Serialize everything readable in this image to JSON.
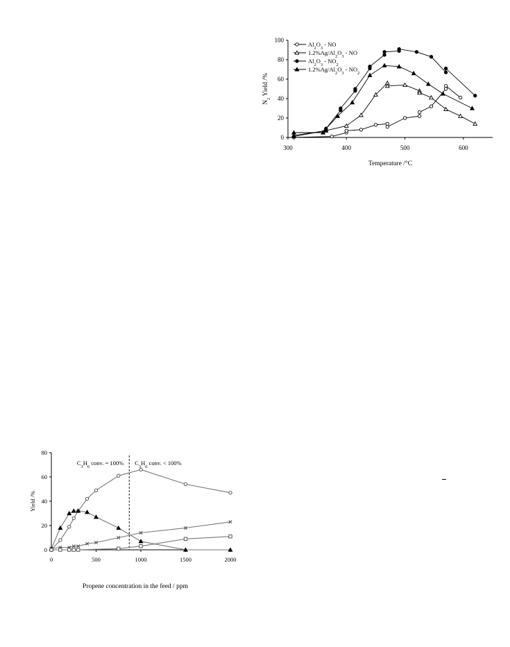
{
  "chart_data": [
    {
      "type": "line",
      "xlabel": "Temperature /°C",
      "ylabel_main": "N",
      "ylabel_sub": "2",
      "ylabel_rest": " Yield /%",
      "xlim": [
        300,
        650
      ],
      "ylim": [
        0,
        100
      ],
      "xticks": [
        300,
        400,
        500,
        600
      ],
      "yticks": [
        0,
        20,
        40,
        60,
        80,
        100
      ],
      "legend_position": "top-left",
      "series": [
        {
          "name": "Al2O3 - NO",
          "marker": "circle-open",
          "points": [
            [
              310,
              0
            ],
            [
              375,
              1
            ],
            [
              400,
              5
            ],
            [
              400,
              7
            ],
            [
              425,
              8
            ],
            [
              450,
              13
            ],
            [
              470,
              14
            ],
            [
              470,
              11
            ],
            [
              500,
              20
            ],
            [
              525,
              22
            ],
            [
              525,
              26
            ],
            [
              545,
              32
            ],
            [
              570,
              50
            ],
            [
              570,
              53
            ],
            [
              595,
              41
            ]
          ]
        },
        {
          "name": "1.2%Ag/Al2O3 - NO",
          "marker": "triangle-open",
          "points": [
            [
              310,
              2
            ],
            [
              365,
              7
            ],
            [
              400,
              12
            ],
            [
              425,
              23
            ],
            [
              450,
              44
            ],
            [
              470,
              56
            ],
            [
              470,
              53
            ],
            [
              500,
              54
            ],
            [
              525,
              48
            ],
            [
              525,
              46
            ],
            [
              545,
              41
            ],
            [
              570,
              29
            ],
            [
              595,
              22
            ],
            [
              620,
              14
            ]
          ]
        },
        {
          "name": "Al2O3 - NO2",
          "marker": "circle-filled",
          "points": [
            [
              310,
              1
            ],
            [
              365,
              7
            ],
            [
              365,
              9
            ],
            [
              390,
              28
            ],
            [
              390,
              30
            ],
            [
              415,
              48
            ],
            [
              415,
              50
            ],
            [
              440,
              71
            ],
            [
              440,
              73
            ],
            [
              465,
              85
            ],
            [
              465,
              88
            ],
            [
              490,
              89
            ],
            [
              490,
              91
            ],
            [
              520,
              88
            ],
            [
              545,
              83
            ],
            [
              570,
              67
            ],
            [
              570,
              71
            ],
            [
              620,
              43
            ]
          ]
        },
        {
          "name": "1.2%Ag/Al2O3 - NO2",
          "marker": "triangle-filled",
          "points": [
            [
              310,
              5
            ],
            [
              360,
              5
            ],
            [
              365,
              9
            ],
            [
              385,
              22
            ],
            [
              410,
              36
            ],
            [
              440,
              64
            ],
            [
              465,
              74
            ],
            [
              490,
              73
            ],
            [
              515,
              66
            ],
            [
              540,
              55
            ],
            [
              565,
              45
            ],
            [
              615,
              30
            ]
          ]
        }
      ],
      "legend": [
        {
          "pre": "Al",
          "s1": "2",
          "mid": "O",
          "s2": "3",
          "post": " - NO"
        },
        {
          "pre": "1.2%Ag/Al",
          "s1": "2",
          "mid": "O",
          "s2": "3",
          "post": " - NO"
        },
        {
          "pre": "Al",
          "s1": "2",
          "mid": "O",
          "s2": "3",
          "post": " - NO",
          "s3": "2"
        },
        {
          "pre": "1.2%Ag/Al",
          "s1": "2",
          "mid": "O",
          "s2": "3",
          "post": " - NO",
          "s3": "2"
        }
      ]
    },
    {
      "type": "line",
      "xlabel": "Propene concentration in the feed  / ppm",
      "ylabel": "Yield /%",
      "xlim": [
        0,
        2000
      ],
      "ylim": [
        0,
        80
      ],
      "xticks": [
        0,
        500,
        1000,
        1500,
        2000
      ],
      "yticks": [
        0,
        20,
        40,
        60,
        80
      ],
      "divider_x": 870,
      "annotation_left": {
        "pre": "C",
        "s1": "3",
        "mid": "H",
        "s2": "6",
        "post": " conv. = 100%"
      },
      "annotation_right": {
        "pre": "C",
        "s1": "3",
        "mid": "H",
        "s2": "6",
        "post": " conv. < 100%"
      },
      "series": [
        {
          "marker": "circle-open",
          "points": [
            [
              0,
              0
            ],
            [
              100,
              8
            ],
            [
              200,
              19
            ],
            [
              250,
              26
            ],
            [
              300,
              32
            ],
            [
              400,
              42
            ],
            [
              500,
              49
            ],
            [
              750,
              61
            ],
            [
              1000,
              66
            ],
            [
              1500,
              54
            ],
            [
              2000,
              47
            ]
          ]
        },
        {
          "marker": "triangle-filled",
          "points": [
            [
              0,
              1
            ],
            [
              100,
              18
            ],
            [
              200,
              30
            ],
            [
              250,
              32
            ],
            [
              300,
              32
            ],
            [
              400,
              31
            ],
            [
              500,
              27
            ],
            [
              750,
              18
            ],
            [
              1000,
              7
            ],
            [
              1500,
              0
            ],
            [
              2000,
              0
            ]
          ]
        },
        {
          "marker": "cross",
          "points": [
            [
              0,
              1
            ],
            [
              100,
              2
            ],
            [
              200,
              2
            ],
            [
              250,
              3
            ],
            [
              300,
              3
            ],
            [
              400,
              5
            ],
            [
              500,
              6
            ],
            [
              750,
              10
            ],
            [
              1000,
              14
            ],
            [
              1500,
              18
            ],
            [
              2000,
              23
            ]
          ]
        },
        {
          "marker": "square-open",
          "points": [
            [
              0,
              0
            ],
            [
              100,
              0
            ],
            [
              200,
              0
            ],
            [
              250,
              0
            ],
            [
              300,
              0
            ],
            [
              750,
              1
            ],
            [
              1000,
              3
            ],
            [
              1500,
              9
            ],
            [
              2000,
              11
            ]
          ]
        }
      ]
    }
  ]
}
